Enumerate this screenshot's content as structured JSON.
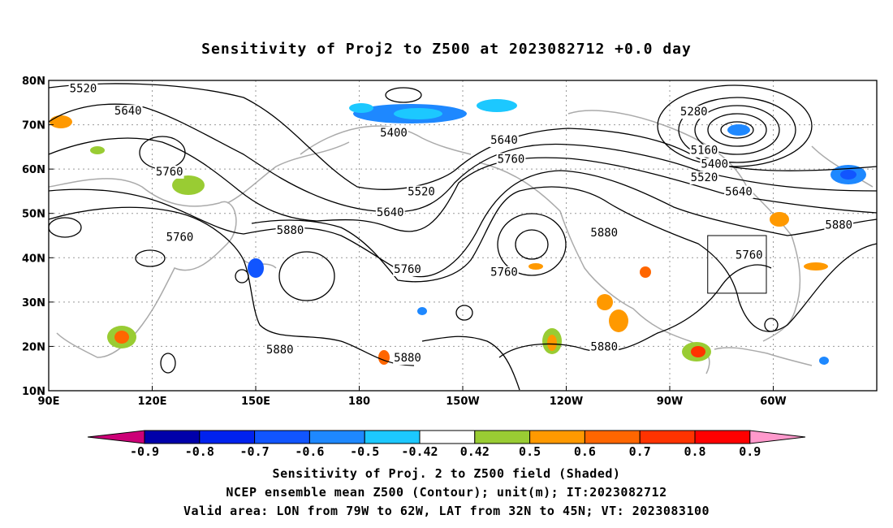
{
  "title": "Sensitivity of Proj2 to Z500 at 2023082712 +0.0 day",
  "map": {
    "lat_ticks": [
      "80N",
      "70N",
      "60N",
      "50N",
      "40N",
      "30N",
      "20N",
      "10N"
    ],
    "lon_ticks": [
      "90E",
      "120E",
      "150E",
      "180",
      "150W",
      "120W",
      "90W",
      "60W"
    ],
    "contour_labels": [
      {
        "text": "5520",
        "lon": 100,
        "lat": 78.3
      },
      {
        "text": "5640",
        "lon": 113,
        "lat": 73.2
      },
      {
        "text": "5400",
        "lon": 190,
        "lat": 68.3
      },
      {
        "text": "5280",
        "lon": 277,
        "lat": 73.0
      },
      {
        "text": "5160",
        "lon": 280,
        "lat": 64.3
      },
      {
        "text": "5400",
        "lon": 283,
        "lat": 61.2
      },
      {
        "text": "5520",
        "lon": 280,
        "lat": 58.2
      },
      {
        "text": "5640",
        "lon": 222,
        "lat": 66.6
      },
      {
        "text": "5760",
        "lon": 224,
        "lat": 62.3
      },
      {
        "text": "5760",
        "lon": 125,
        "lat": 59.5
      },
      {
        "text": "5520",
        "lon": 198,
        "lat": 55.0
      },
      {
        "text": "5640",
        "lon": 189,
        "lat": 50.3
      },
      {
        "text": "5760",
        "lon": 128,
        "lat": 44.7
      },
      {
        "text": "5880",
        "lon": 160,
        "lat": 46.3
      },
      {
        "text": "5760",
        "lon": 194,
        "lat": 37.5
      },
      {
        "text": "5760",
        "lon": 222,
        "lat": 36.8
      },
      {
        "text": "5880",
        "lon": 251,
        "lat": 45.7
      },
      {
        "text": "5640",
        "lon": 290,
        "lat": 55.0
      },
      {
        "text": "5760",
        "lon": 293,
        "lat": 40.7
      },
      {
        "text": "5880",
        "lon": 319,
        "lat": 47.5
      },
      {
        "text": "5880",
        "lon": 157,
        "lat": 19.3
      },
      {
        "text": "5880",
        "lon": 194,
        "lat": 17.5
      },
      {
        "text": "5880",
        "lon": 251,
        "lat": 20.0
      }
    ],
    "valid_box": {
      "lon_min": -79,
      "lon_max": -62,
      "lat_min": 32,
      "lat_max": 45
    }
  },
  "colorbar": {
    "labels": [
      "-0.9",
      "-0.8",
      "-0.7",
      "-0.6",
      "-0.5",
      "-0.42",
      "0.42",
      "0.5",
      "0.6",
      "0.7",
      "0.8",
      "0.9"
    ],
    "colors": [
      "#0000aa",
      "#0022ee",
      "#1155ff",
      "#1e88ff",
      "#1cc8ff",
      "#ffffff",
      "#99cc33",
      "#ff9900",
      "#ff6600",
      "#ff3300",
      "#ff0000"
    ],
    "low_color": "#cc0077",
    "high_color": "#ff99cc"
  },
  "captions": {
    "line1": "Sensitivity of Proj. 2 to Z500 field (Shaded)",
    "line2": "NCEP ensemble mean Z500 (Contour); unit(m); IT:2023082712",
    "line3": "Valid area: LON from 79W to 62W, LAT from 32N to 45N; VT: 2023083100"
  }
}
